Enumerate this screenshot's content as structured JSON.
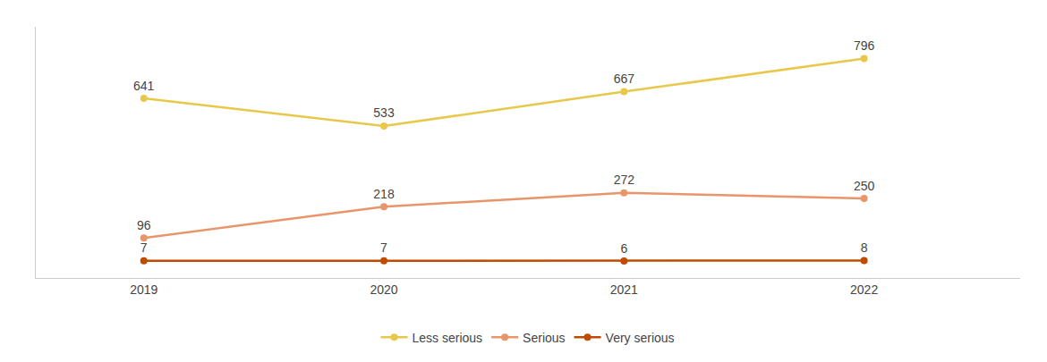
{
  "chart_data": {
    "type": "line",
    "x": [
      2019,
      2020,
      2021,
      2022
    ],
    "series": [
      {
        "name": "Less serious",
        "color": "#E8C84A",
        "marker": "circle",
        "values": [
          641,
          533,
          667,
          796
        ]
      },
      {
        "name": "Serious",
        "color": "#E8956A",
        "marker": "circle",
        "values": [
          96,
          218,
          272,
          250
        ]
      },
      {
        "name": "Very serious",
        "color": "#C04A00",
        "marker": "circle",
        "values": [
          7,
          7,
          6,
          8
        ]
      }
    ],
    "xlim": [
      2018.55,
      2022.65
    ],
    "xticks": [
      2019,
      2020,
      2021,
      2022
    ],
    "ylim": [
      -60,
      920
    ],
    "tick_labels": "x",
    "data_labels": true,
    "grid": false,
    "legend": "bottom"
  }
}
